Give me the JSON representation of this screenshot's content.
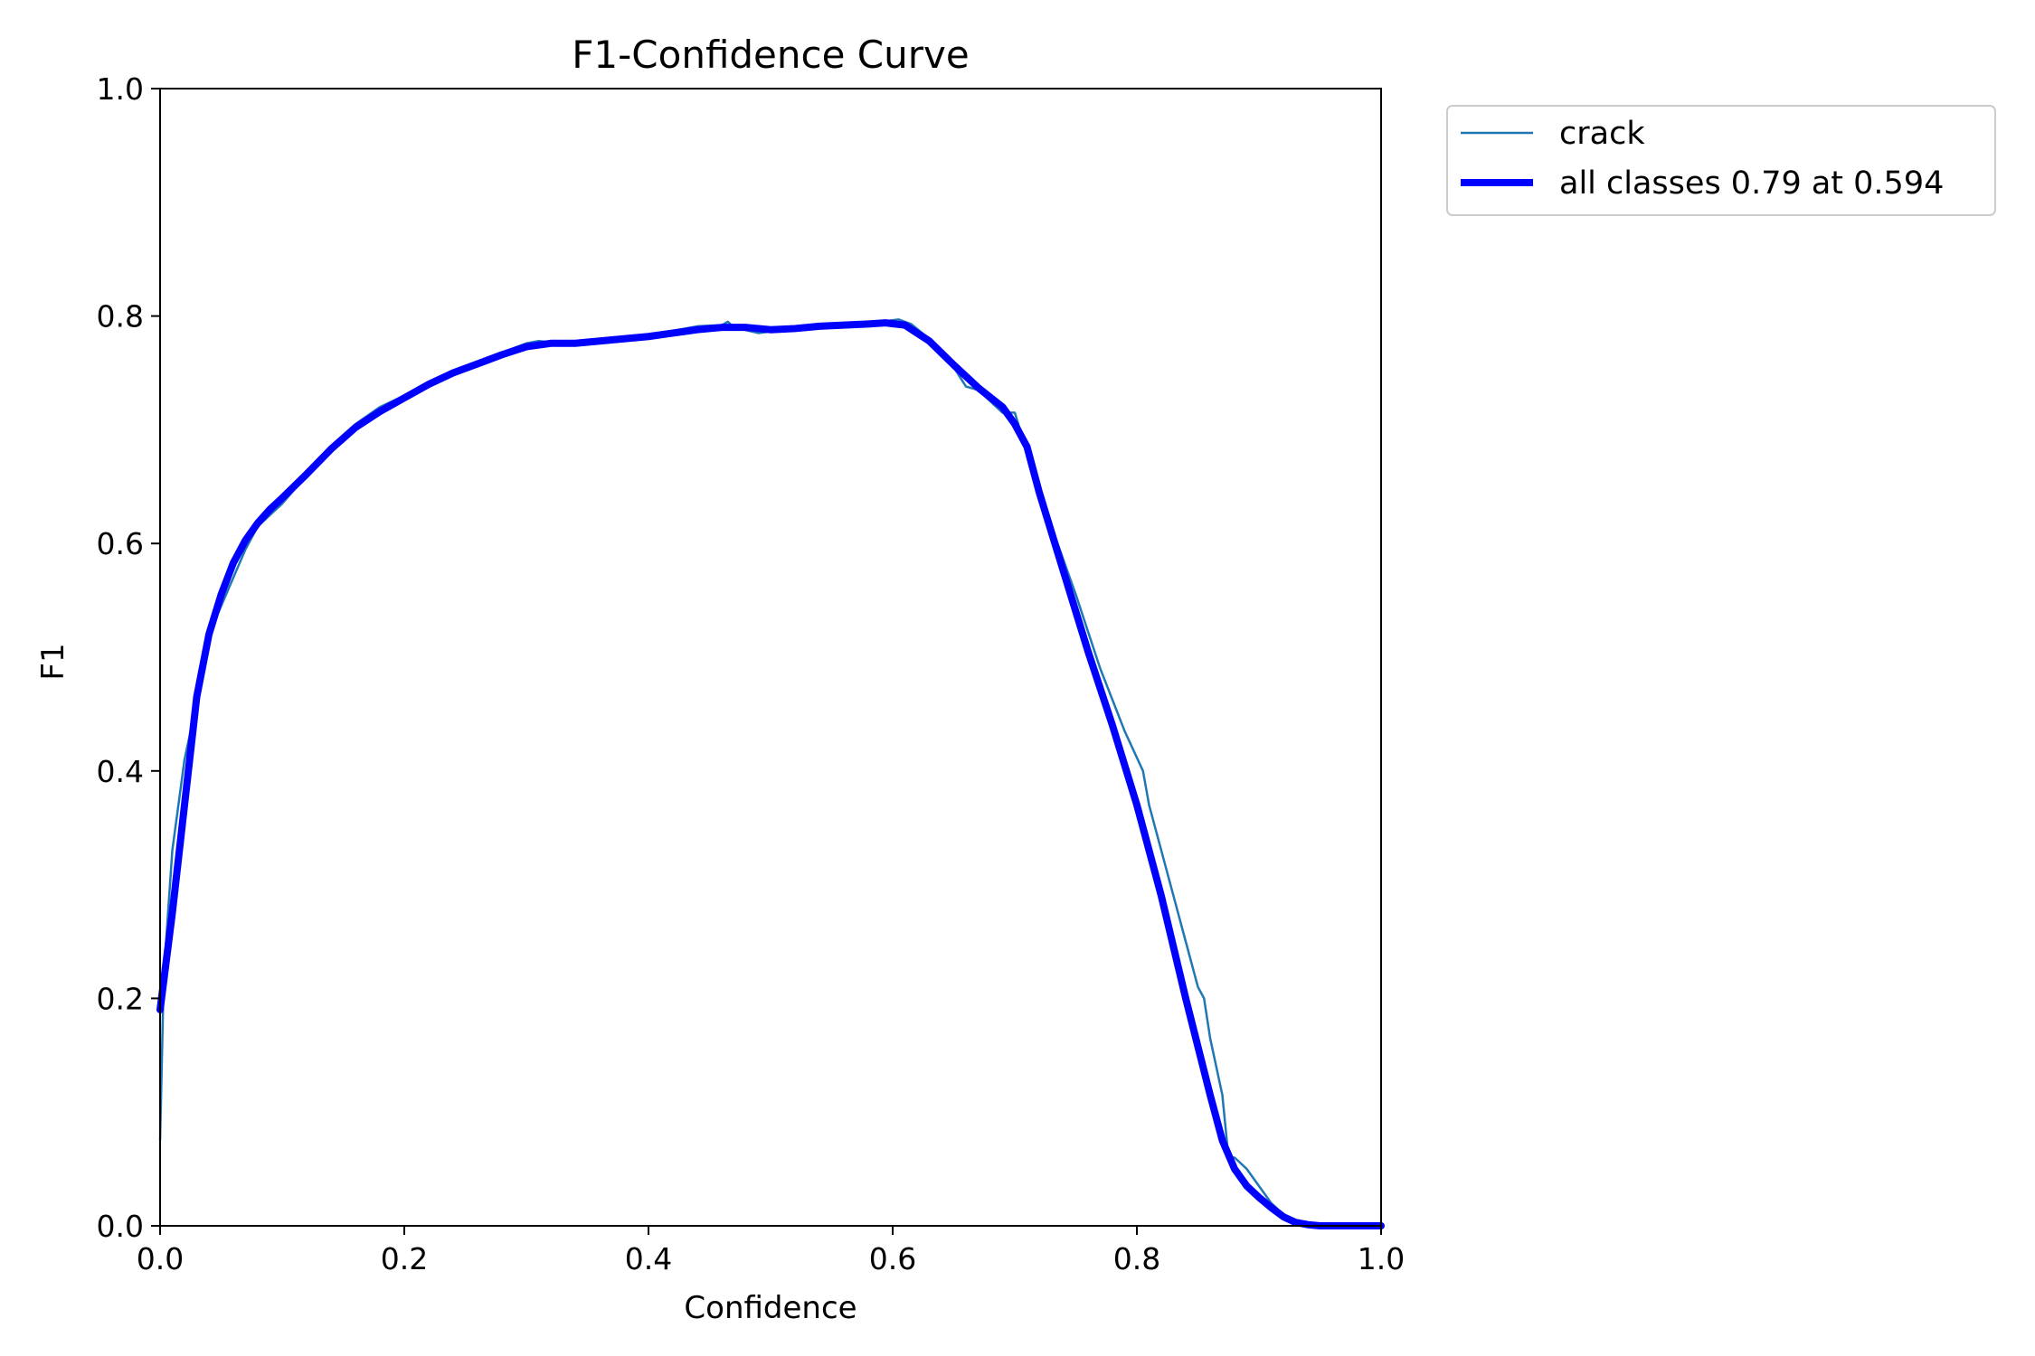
{
  "chart_data": {
    "type": "line",
    "title": "F1-Confidence Curve",
    "xlabel": "Confidence",
    "ylabel": "F1",
    "xlim": [
      0.0,
      1.0
    ],
    "ylim": [
      0.0,
      1.0
    ],
    "xticks": [
      "0.0",
      "0.2",
      "0.4",
      "0.6",
      "0.8",
      "1.0"
    ],
    "yticks": [
      "0.0",
      "0.2",
      "0.4",
      "0.6",
      "0.8",
      "1.0"
    ],
    "grid": false,
    "legend_position": "outside-top-right",
    "series": [
      {
        "name": "crack",
        "color": "#1f77b4",
        "x": [
          0.0,
          0.003,
          0.01,
          0.02,
          0.03,
          0.04,
          0.05,
          0.06,
          0.07,
          0.08,
          0.09,
          0.1,
          0.12,
          0.14,
          0.16,
          0.18,
          0.2,
          0.22,
          0.24,
          0.26,
          0.28,
          0.3,
          0.31,
          0.33,
          0.345,
          0.36,
          0.38,
          0.4,
          0.42,
          0.44,
          0.46,
          0.465,
          0.47,
          0.49,
          0.51,
          0.53,
          0.55,
          0.57,
          0.59,
          0.605,
          0.615,
          0.63,
          0.65,
          0.66,
          0.67,
          0.68,
          0.69,
          0.7,
          0.71,
          0.72,
          0.73,
          0.75,
          0.77,
          0.79,
          0.805,
          0.81,
          0.82,
          0.83,
          0.84,
          0.85,
          0.855,
          0.86,
          0.87,
          0.875,
          0.88,
          0.89,
          0.9,
          0.91,
          0.92,
          0.93,
          0.935,
          0.94,
          0.95,
          0.97,
          1.0
        ],
        "y": [
          0.075,
          0.22,
          0.33,
          0.41,
          0.46,
          0.52,
          0.545,
          0.57,
          0.595,
          0.615,
          0.625,
          0.635,
          0.66,
          0.685,
          0.705,
          0.72,
          0.73,
          0.74,
          0.75,
          0.76,
          0.768,
          0.776,
          0.778,
          0.776,
          0.775,
          0.778,
          0.782,
          0.784,
          0.787,
          0.791,
          0.792,
          0.795,
          0.79,
          0.785,
          0.788,
          0.79,
          0.792,
          0.794,
          0.795,
          0.797,
          0.793,
          0.78,
          0.755,
          0.738,
          0.735,
          0.725,
          0.715,
          0.715,
          0.68,
          0.645,
          0.615,
          0.555,
          0.49,
          0.435,
          0.4,
          0.37,
          0.33,
          0.29,
          0.25,
          0.21,
          0.2,
          0.165,
          0.115,
          0.06,
          0.06,
          0.05,
          0.035,
          0.02,
          0.01,
          0.003,
          0.002,
          0.001,
          0.0,
          0.0,
          0.0
        ]
      },
      {
        "name": "all classes 0.79 at 0.594",
        "color": "#0000ff",
        "x": [
          0.0,
          0.01,
          0.02,
          0.03,
          0.04,
          0.05,
          0.06,
          0.07,
          0.08,
          0.09,
          0.1,
          0.12,
          0.14,
          0.16,
          0.18,
          0.2,
          0.22,
          0.24,
          0.26,
          0.28,
          0.3,
          0.32,
          0.34,
          0.36,
          0.38,
          0.4,
          0.42,
          0.44,
          0.46,
          0.48,
          0.5,
          0.52,
          0.54,
          0.56,
          0.58,
          0.594,
          0.61,
          0.63,
          0.65,
          0.67,
          0.69,
          0.7,
          0.71,
          0.72,
          0.74,
          0.76,
          0.78,
          0.8,
          0.82,
          0.84,
          0.86,
          0.87,
          0.88,
          0.89,
          0.9,
          0.91,
          0.92,
          0.93,
          0.94,
          0.95,
          0.97,
          1.0
        ],
        "y": [
          0.19,
          0.275,
          0.37,
          0.465,
          0.52,
          0.555,
          0.583,
          0.603,
          0.618,
          0.63,
          0.64,
          0.661,
          0.683,
          0.702,
          0.716,
          0.728,
          0.74,
          0.75,
          0.758,
          0.766,
          0.773,
          0.776,
          0.776,
          0.778,
          0.78,
          0.782,
          0.785,
          0.788,
          0.79,
          0.79,
          0.788,
          0.789,
          0.791,
          0.792,
          0.793,
          0.794,
          0.792,
          0.778,
          0.757,
          0.737,
          0.72,
          0.705,
          0.685,
          0.645,
          0.575,
          0.505,
          0.44,
          0.37,
          0.29,
          0.2,
          0.115,
          0.075,
          0.05,
          0.035,
          0.025,
          0.016,
          0.008,
          0.003,
          0.001,
          0.0,
          0.0,
          0.0
        ]
      }
    ]
  }
}
